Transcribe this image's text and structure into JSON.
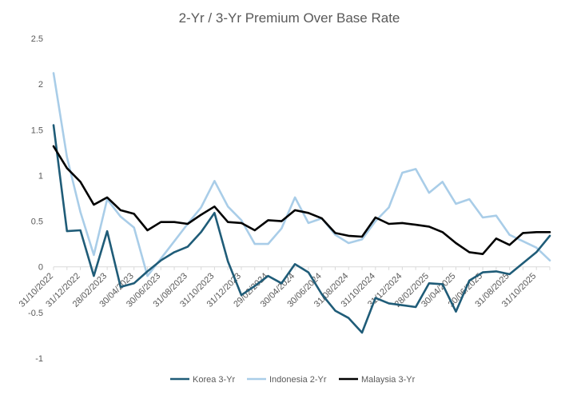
{
  "chart_data": {
    "type": "line",
    "title": "2-Yr / 3-Yr Premium Over Base Rate",
    "xlabel": "",
    "ylabel": "",
    "ylim": [
      -1,
      2.5
    ],
    "yticks": [
      -1,
      -0.5,
      0,
      0.5,
      1,
      1.5,
      2,
      2.5
    ],
    "ytick_labels": [
      "-1",
      "-0.5",
      "0",
      "0.5",
      "1",
      "1.5",
      "2",
      "2.5"
    ],
    "grid": false,
    "legend_position": "bottom",
    "xtick_labels": [
      "31/10/2022",
      "31/12/2022",
      "28/02/2023",
      "30/04/2023",
      "30/06/2023",
      "31/08/2023",
      "31/10/2023",
      "31/12/2023",
      "29/02/2024",
      "30/04/2024",
      "30/06/2024",
      "31/08/2024",
      "31/10/2024",
      "31/12/2024",
      "28/02/2025",
      "30/04/2025",
      "30/06/2025",
      "31/08/2025",
      "31/10/2025"
    ],
    "x": [
      "31/10/2022",
      "30/11/2022",
      "31/12/2022",
      "31/01/2023",
      "28/02/2023",
      "31/03/2023",
      "30/04/2023",
      "31/05/2023",
      "30/06/2023",
      "31/07/2023",
      "31/08/2023",
      "30/09/2023",
      "31/10/2023",
      "30/11/2023",
      "31/12/2023",
      "31/01/2024",
      "29/02/2024",
      "31/03/2024",
      "30/04/2024",
      "31/05/2024",
      "30/06/2024",
      "31/07/2024",
      "31/08/2024",
      "30/09/2024",
      "31/10/2024",
      "30/11/2024",
      "31/12/2024",
      "31/01/2025",
      "28/02/2025",
      "31/03/2025",
      "30/04/2025",
      "31/05/2025",
      "30/06/2025",
      "31/07/2025",
      "31/08/2025",
      "30/09/2025",
      "31/10/2025",
      "30/11/2025"
    ],
    "series": [
      {
        "name": "Korea 3-Yr",
        "color": "#1f5c78",
        "values": [
          1.55,
          0.39,
          0.4,
          -0.1,
          0.39,
          -0.22,
          -0.18,
          -0.05,
          0.07,
          0.16,
          0.22,
          0.38,
          0.59,
          0.06,
          -0.31,
          -0.21,
          -0.1,
          -0.18,
          0.03,
          -0.06,
          -0.3,
          -0.48,
          -0.56,
          -0.72,
          -0.34,
          -0.4,
          -0.42,
          -0.44,
          -0.18,
          -0.19,
          -0.49,
          -0.15,
          -0.06,
          -0.05,
          -0.08,
          0.04,
          0.16,
          0.34
        ]
      },
      {
        "name": "Indonesia 2-Yr",
        "color": "#a9cde8",
        "values": [
          2.12,
          1.2,
          0.6,
          0.13,
          0.74,
          0.55,
          0.43,
          -0.1,
          0.09,
          0.28,
          0.47,
          0.65,
          0.94,
          0.66,
          0.51,
          0.25,
          0.25,
          0.42,
          0.76,
          0.48,
          0.53,
          0.35,
          0.26,
          0.3,
          0.5,
          0.65,
          1.03,
          1.07,
          0.81,
          0.93,
          0.69,
          0.74,
          0.54,
          0.56,
          0.35,
          0.28,
          0.21,
          0.07
        ]
      },
      {
        "name": "Malaysia 3-Yr",
        "color": "#000000",
        "values": [
          1.32,
          1.08,
          0.93,
          0.68,
          0.76,
          0.62,
          0.58,
          0.4,
          0.49,
          0.49,
          0.47,
          0.57,
          0.66,
          0.49,
          0.48,
          0.4,
          0.51,
          0.5,
          0.62,
          0.59,
          0.53,
          0.37,
          0.34,
          0.33,
          0.54,
          0.47,
          0.48,
          0.46,
          0.44,
          0.38,
          0.26,
          0.16,
          0.14,
          0.31,
          0.24,
          0.37,
          0.38,
          0.38
        ]
      }
    ]
  }
}
